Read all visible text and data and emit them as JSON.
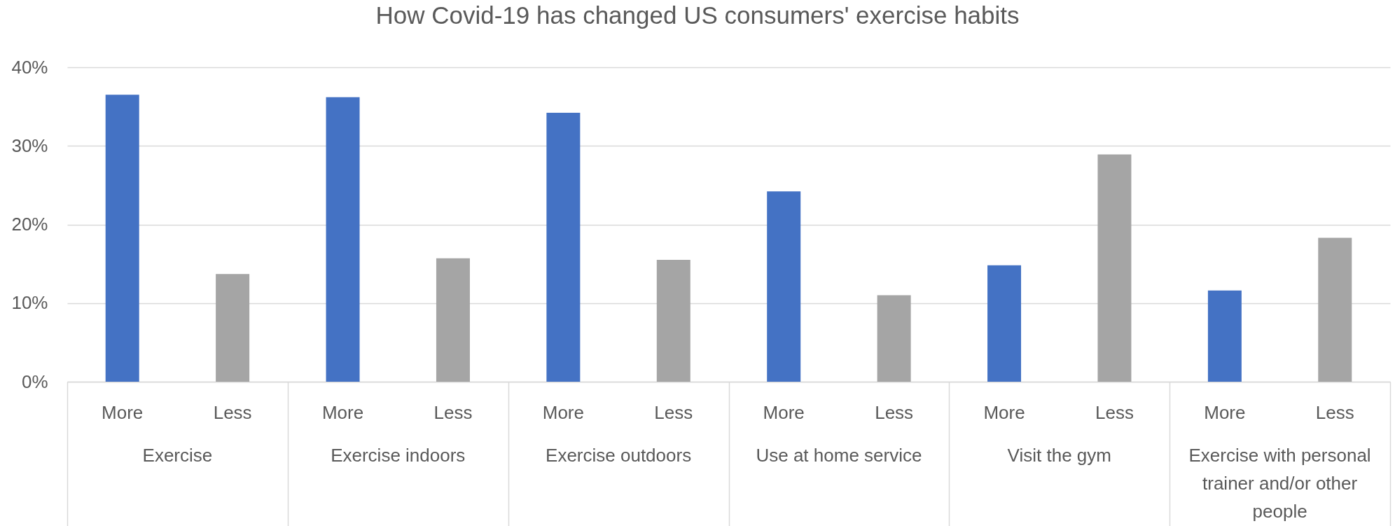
{
  "chart_data": {
    "type": "bar",
    "title": "How Covid-19 has changed US consumers' exercise habits",
    "categories": [
      "Exercise",
      "Exercise indoors",
      "Exercise outdoors",
      "Use at home service",
      "Visit the gym",
      "Exercise with personal trainer and/or other people"
    ],
    "series": [
      {
        "name": "More",
        "color": "#4472c4",
        "values": [
          36.5,
          36.2,
          34.2,
          24.2,
          14.8,
          11.6
        ]
      },
      {
        "name": "Less",
        "color": "#a5a5a5",
        "values": [
          13.7,
          15.7,
          15.5,
          11.0,
          28.9,
          18.3
        ]
      }
    ],
    "ylim": [
      0,
      40
    ],
    "yticks": [
      {
        "value": 0,
        "label": "0%"
      },
      {
        "value": 10,
        "label": "10%"
      },
      {
        "value": 20,
        "label": "20%"
      },
      {
        "value": 30,
        "label": "30%"
      },
      {
        "value": 40,
        "label": "40%"
      }
    ],
    "grid": "y"
  }
}
